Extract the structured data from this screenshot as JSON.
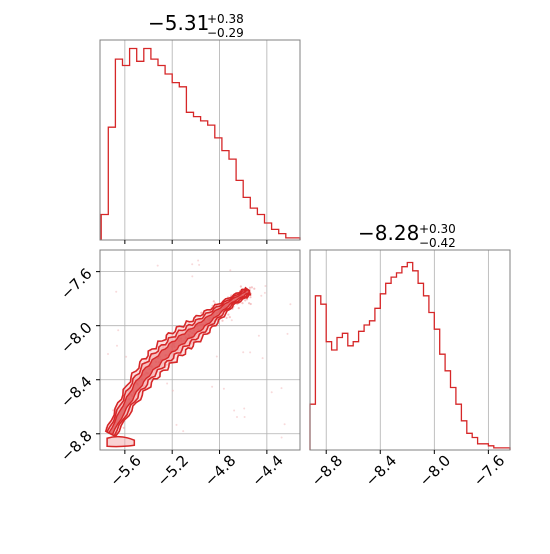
{
  "colors": {
    "line": "#d62728",
    "fill": "#f4a6a8",
    "grid": "#b0b0b0",
    "frame": "#808080",
    "points": "#f2b6b8"
  },
  "titles": {
    "param1": {
      "value": "−5.31",
      "upper": "+0.38",
      "lower": "−0.29"
    },
    "param2": {
      "value": "−8.28",
      "upper": "+0.30",
      "lower": "−0.42"
    }
  },
  "chart_data": [
    {
      "type": "histogram",
      "panel": "top-left",
      "xlim": [
        -5.81,
        -4.12
      ],
      "bin_edges": [
        -5.8,
        -5.74,
        -5.68,
        -5.62,
        -5.56,
        -5.5,
        -5.44,
        -5.38,
        -5.32,
        -5.26,
        -5.2,
        -5.14,
        -5.08,
        -5.02,
        -4.96,
        -4.9,
        -4.84,
        -4.78,
        -4.72,
        -4.66,
        -4.6,
        -4.54,
        -4.48,
        -4.42,
        -4.36,
        -4.3,
        -4.24,
        -4.18,
        -4.12
      ],
      "counts": [
        12,
        53,
        85,
        82,
        90,
        84,
        90,
        85,
        82,
        78,
        74,
        72,
        60,
        58,
        56,
        54,
        48,
        42,
        38,
        28,
        20,
        15,
        12,
        8,
        5,
        3,
        1,
        1
      ],
      "ylim": [
        0,
        94
      ],
      "xticks": [
        "−5.6",
        "−5.2",
        "−4.8",
        "−4.4"
      ],
      "grid": true
    },
    {
      "type": "histogram",
      "panel": "bottom-right",
      "xlim": [
        -8.92,
        -7.44
      ],
      "bin_edges": [
        -8.92,
        -8.88,
        -8.84,
        -8.8,
        -8.76,
        -8.72,
        -8.68,
        -8.64,
        -8.6,
        -8.56,
        -8.52,
        -8.48,
        -8.44,
        -8.4,
        -8.36,
        -8.32,
        -8.28,
        -8.24,
        -8.2,
        -8.16,
        -8.12,
        -8.08,
        -8.04,
        -8.0,
        -7.96,
        -7.92,
        -7.88,
        -7.84,
        -7.8,
        -7.76,
        -7.72,
        -7.68,
        -7.64,
        -7.6,
        -7.56,
        -7.52,
        -7.48,
        -7.44
      ],
      "counts": [
        22,
        74,
        70,
        52,
        48,
        54,
        56,
        50,
        52,
        57,
        60,
        62,
        68,
        75,
        80,
        83,
        85,
        88,
        90,
        86,
        80,
        74,
        66,
        58,
        46,
        38,
        30,
        22,
        14,
        8,
        6,
        3,
        3,
        2,
        1,
        1,
        1
      ],
      "ylim": [
        0,
        96
      ],
      "xticks": [
        "−8.8",
        "−8.4",
        "−8.0",
        "−7.6"
      ],
      "grid": true
    },
    {
      "type": "scatter",
      "panel": "bottom-left",
      "xlim": [
        -5.81,
        -4.12
      ],
      "ylim": [
        -8.92,
        -7.44
      ],
      "ridge": {
        "x": [
          -5.72,
          -5.6,
          -5.5,
          -5.4,
          -5.3,
          -5.2,
          -5.1,
          -5.0,
          -4.9,
          -4.8,
          -4.7,
          -4.6,
          -4.55
        ],
        "y": [
          -8.8,
          -8.6,
          -8.45,
          -8.33,
          -8.24,
          -8.16,
          -8.09,
          -8.03,
          -7.96,
          -7.89,
          -7.82,
          -7.77,
          -7.74
        ]
      },
      "xticks": [
        "−5.6",
        "−5.2",
        "−4.8",
        "−4.4"
      ],
      "yticks": [
        "−7.6",
        "−8.0",
        "−8.4",
        "−8.8"
      ],
      "grid": true
    }
  ]
}
